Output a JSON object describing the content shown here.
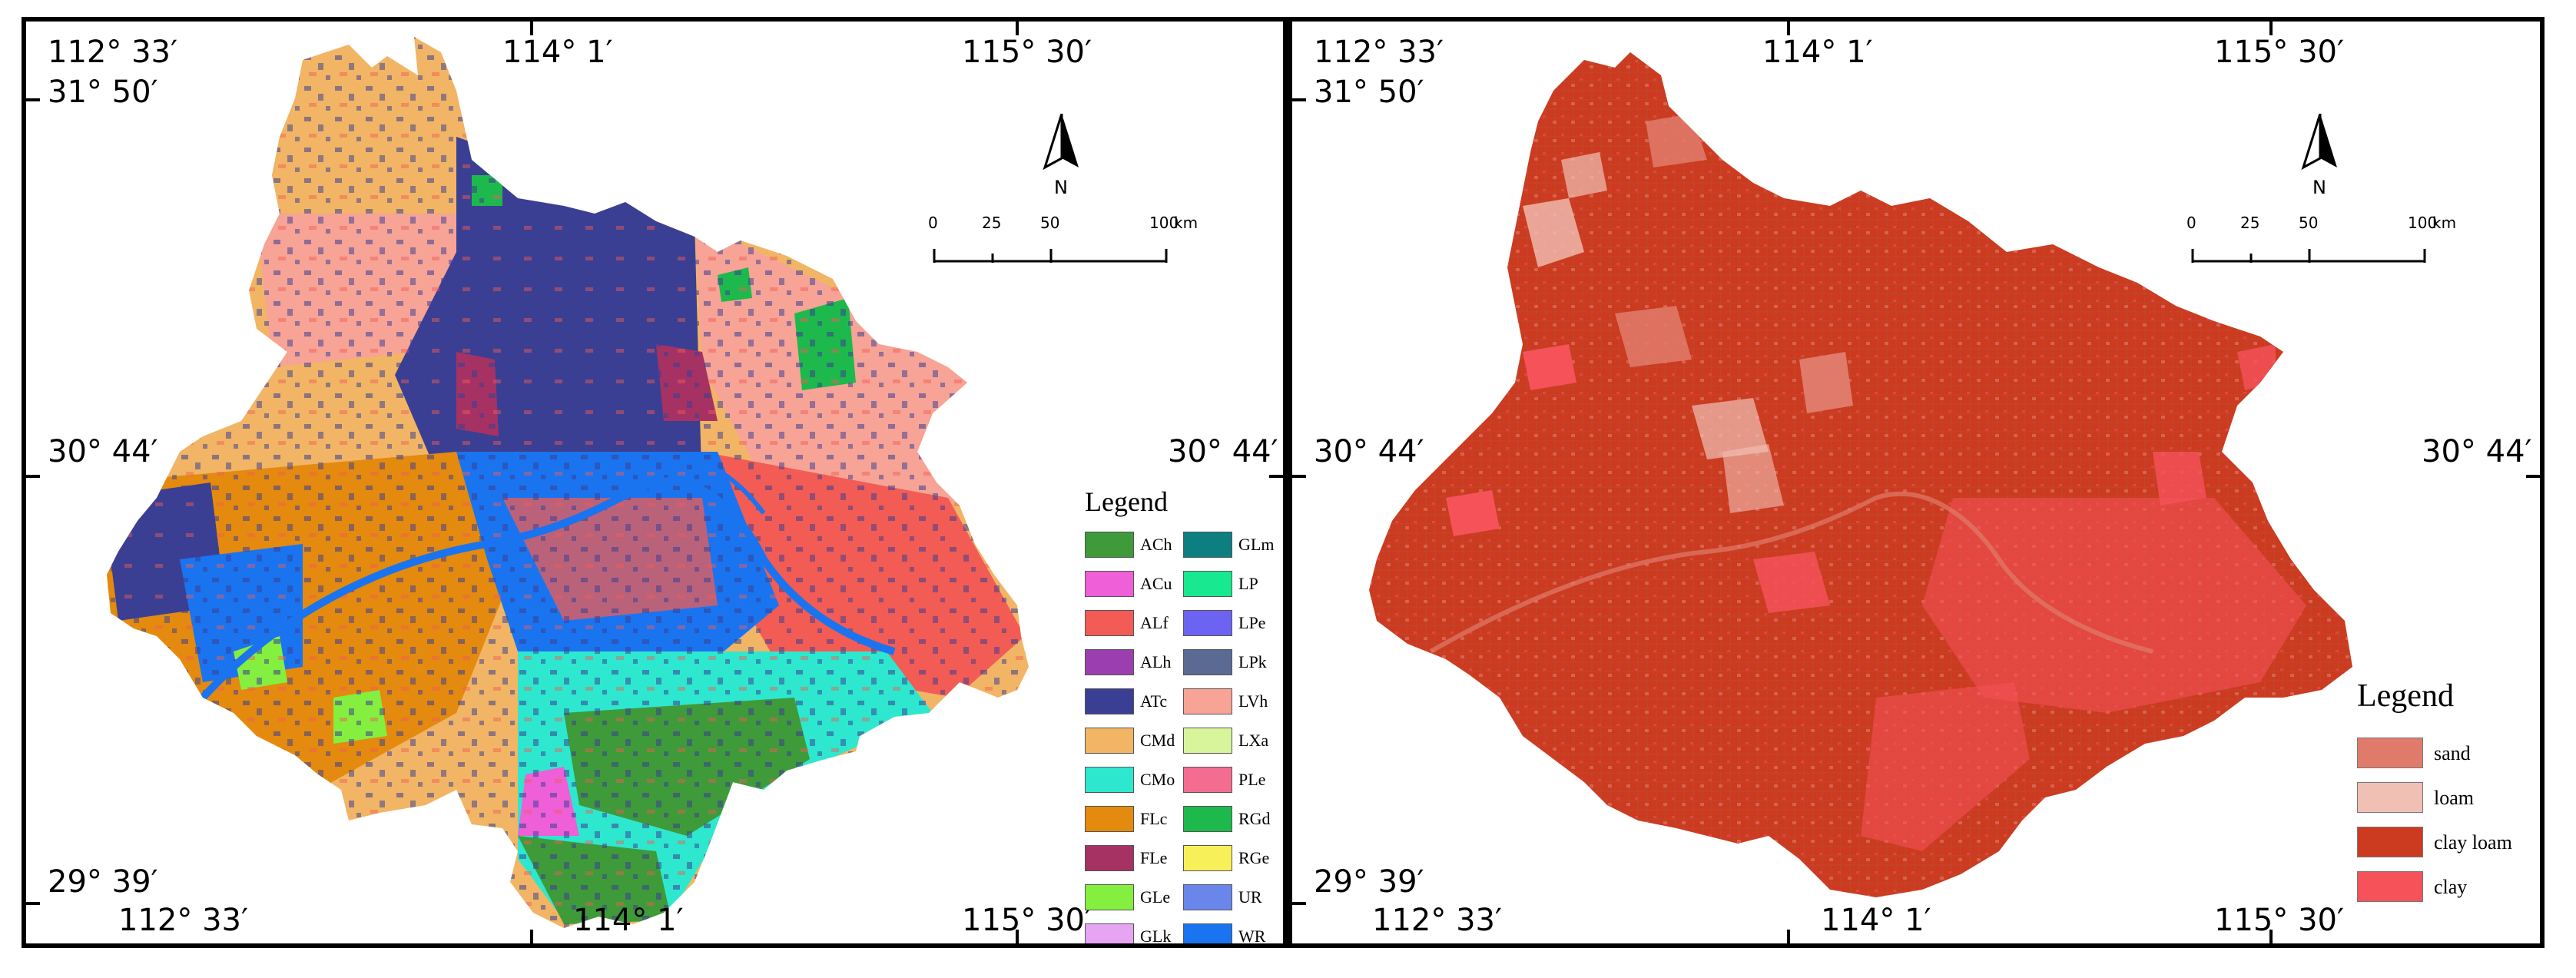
{
  "left_map": {
    "coords": {
      "top": [
        "112° 33′",
        "114° 1′",
        "115° 30′"
      ],
      "bottom": [
        "112° 33′",
        "114° 1′",
        "115° 30′"
      ],
      "left": [
        "31° 50′",
        "30° 44′",
        "29° 39′"
      ],
      "right": [
        "30° 44′"
      ]
    },
    "north_label": "N",
    "scale": {
      "labels": [
        "0",
        "25",
        "50",
        "100"
      ],
      "unit": "km"
    },
    "legend": {
      "title": "Legend",
      "items": [
        {
          "code": "ACh",
          "color": "#3f9a3a"
        },
        {
          "code": "ACu",
          "color": "#ee5fd8"
        },
        {
          "code": "ALf",
          "color": "#f25c54"
        },
        {
          "code": "ALh",
          "color": "#9b3fb0"
        },
        {
          "code": "ATc",
          "color": "#3b3f93"
        },
        {
          "code": "CMd",
          "color": "#f1b565"
        },
        {
          "code": "CMo",
          "color": "#2de8cf"
        },
        {
          "code": "FLc",
          "color": "#e48a0f"
        },
        {
          "code": "FLe",
          "color": "#a63264"
        },
        {
          "code": "GLe",
          "color": "#84ef3f"
        },
        {
          "code": "GLk",
          "color": "#e7a4f3"
        },
        {
          "code": "GLm",
          "color": "#0e7f80"
        },
        {
          "code": "LP",
          "color": "#18e88f"
        },
        {
          "code": "LPe",
          "color": "#6d63f2"
        },
        {
          "code": "LPk",
          "color": "#5a6a93"
        },
        {
          "code": "LVh",
          "color": "#f7a396"
        },
        {
          "code": "LXa",
          "color": "#d8f59b"
        },
        {
          "code": "PLe",
          "color": "#f46c8f"
        },
        {
          "code": "RGd",
          "color": "#1eb94c"
        },
        {
          "code": "RGe",
          "color": "#f8f059"
        },
        {
          "code": "UR",
          "color": "#6a86ea"
        },
        {
          "code": "WR",
          "color": "#1a74f0"
        }
      ]
    }
  },
  "right_map": {
    "coords": {
      "top": [
        "112° 33′",
        "114° 1′",
        "115° 30′"
      ],
      "bottom": [
        "112° 33′",
        "114° 1′",
        "115° 30′"
      ],
      "left": [
        "31° 50′",
        "30° 44′",
        "29° 39′"
      ],
      "right": [
        "30° 44′"
      ]
    },
    "north_label": "N",
    "scale": {
      "labels": [
        "0",
        "25",
        "50",
        "100"
      ],
      "unit": "km"
    },
    "legend": {
      "title": "Legend",
      "items": [
        {
          "label": "sand",
          "color": "#e07b6b"
        },
        {
          "label": "loam",
          "color": "#f1c0b5"
        },
        {
          "label": "clay loam",
          "color": "#cc3a1f"
        },
        {
          "label": "clay",
          "color": "#f5525a"
        }
      ]
    }
  }
}
